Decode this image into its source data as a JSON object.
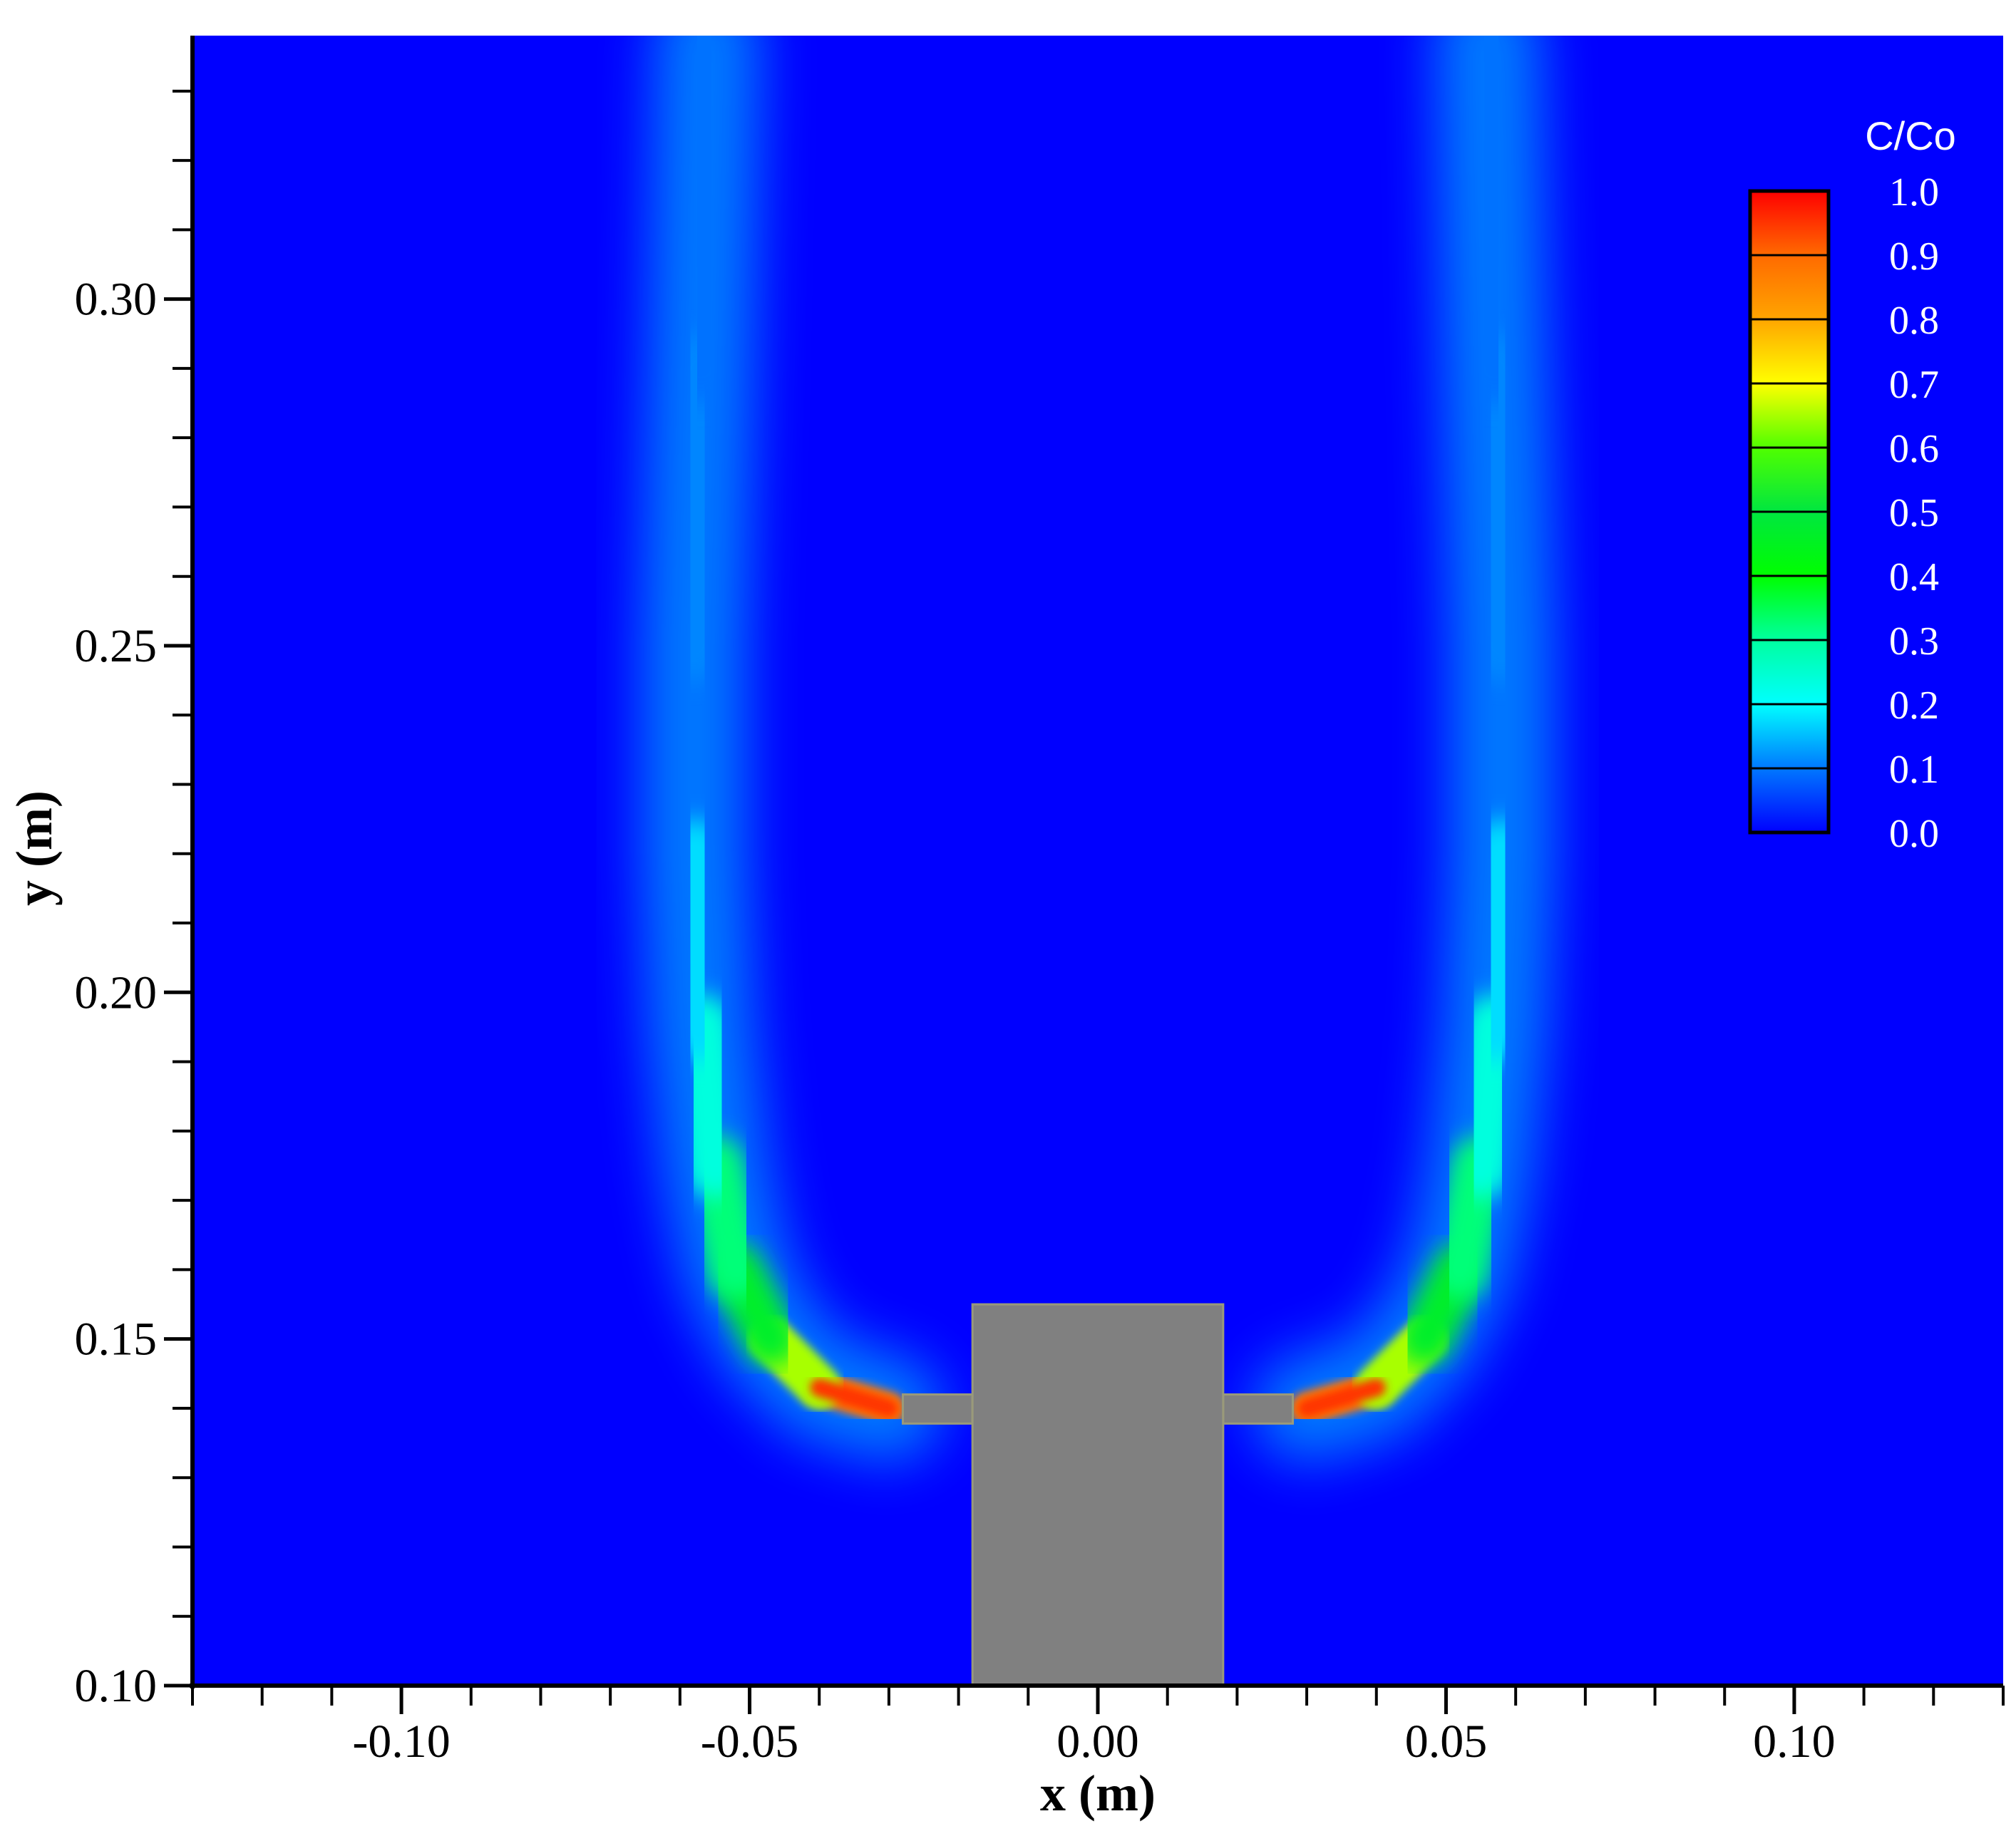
{
  "chart_data": {
    "type": "heatmap",
    "title": "",
    "xlabel": "x (m)",
    "ylabel": "y (m)",
    "xlim": [
      -0.13,
      0.13
    ],
    "ylim": [
      0.1,
      0.338
    ],
    "x_ticks": [
      -0.1,
      -0.05,
      0.0,
      0.05,
      0.1
    ],
    "x_tick_labels": [
      "-0.10",
      "-0.05",
      "0.00",
      "0.05",
      "0.10"
    ],
    "y_ticks": [
      0.1,
      0.15,
      0.2,
      0.25,
      0.3
    ],
    "y_tick_labels": [
      "0.10",
      "0.15",
      "0.20",
      "0.25",
      "0.30"
    ],
    "x_minor_step": 0.01,
    "y_minor_step": 0.01,
    "colorbar": {
      "title": "C/Co",
      "min": 0.0,
      "max": 1.0,
      "levels": [
        0.0,
        0.1,
        0.2,
        0.3,
        0.4,
        0.5,
        0.6,
        0.7,
        0.8,
        0.9,
        1.0
      ],
      "labels": [
        "1.0",
        "0.9",
        "0.8",
        "0.7",
        "0.6",
        "0.5",
        "0.4",
        "0.3",
        "0.2",
        "0.1",
        "0.0"
      ],
      "colors": [
        "#0000ff",
        "#0078ff",
        "#00ffff",
        "#00ffa0",
        "#00ff00",
        "#00e640",
        "#50ff00",
        "#ffff00",
        "#ffa500",
        "#ff6a00",
        "#ff0000"
      ],
      "placement": "top-right"
    },
    "background_value": 0.0,
    "obstacle": {
      "color": "#808080",
      "body": {
        "x": [
          -0.018,
          0.018
        ],
        "y": [
          0.1,
          0.155
        ]
      },
      "left_arm": {
        "x": [
          -0.028,
          -0.018
        ],
        "y": [
          0.1378,
          0.142
        ]
      },
      "right_arm": {
        "x": [
          0.018,
          0.028
        ],
        "y": [
          0.1378,
          0.142
        ]
      }
    },
    "plumes": [
      {
        "side": "left",
        "centerline": [
          {
            "x": -0.03,
            "y": 0.14,
            "c": 1.0
          },
          {
            "x": -0.04,
            "y": 0.143,
            "c": 0.75
          },
          {
            "x": -0.047,
            "y": 0.15,
            "c": 0.55
          },
          {
            "x": -0.052,
            "y": 0.16,
            "c": 0.38
          },
          {
            "x": -0.055,
            "y": 0.175,
            "c": 0.27
          },
          {
            "x": -0.057,
            "y": 0.195,
            "c": 0.2
          },
          {
            "x": -0.058,
            "y": 0.22,
            "c": 0.15
          },
          {
            "x": -0.058,
            "y": 0.25,
            "c": 0.12
          },
          {
            "x": -0.057,
            "y": 0.29,
            "c": 0.1
          },
          {
            "x": -0.056,
            "y": 0.338,
            "c": 0.09
          }
        ]
      },
      {
        "side": "right",
        "centerline": [
          {
            "x": 0.03,
            "y": 0.14,
            "c": 1.0
          },
          {
            "x": 0.04,
            "y": 0.143,
            "c": 0.75
          },
          {
            "x": 0.047,
            "y": 0.15,
            "c": 0.55
          },
          {
            "x": 0.052,
            "y": 0.16,
            "c": 0.38
          },
          {
            "x": 0.055,
            "y": 0.175,
            "c": 0.27
          },
          {
            "x": 0.057,
            "y": 0.195,
            "c": 0.2
          },
          {
            "x": 0.058,
            "y": 0.22,
            "c": 0.15
          },
          {
            "x": 0.058,
            "y": 0.25,
            "c": 0.12
          },
          {
            "x": 0.057,
            "y": 0.29,
            "c": 0.1
          },
          {
            "x": 0.056,
            "y": 0.338,
            "c": 0.09
          }
        ]
      }
    ]
  }
}
